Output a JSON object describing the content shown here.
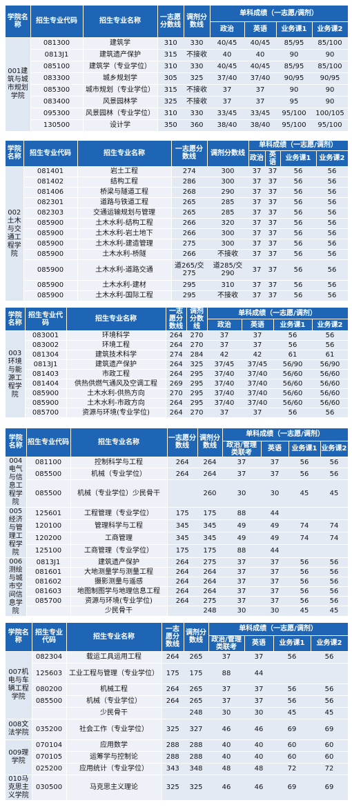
{
  "header_labels": {
    "college": "学院名称",
    "code": "招生专业代码",
    "name": "招生专业名称",
    "first": "一志愿分数线",
    "adjust": "调剂分数线",
    "single": "单科成绩（一志愿/调剂）",
    "politics": "政治",
    "politics_mgmt": "政治/管理类联考",
    "english": "英语",
    "course1": "业务课1",
    "course2": "业务课2"
  },
  "blocks": [
    {
      "college": "001建筑与城市规划学院",
      "rows": [
        [
          "081300",
          "建筑学",
          "310",
          "330",
          "40/45",
          "40/45",
          "85/95",
          "85/100"
        ],
        [
          "0813J1",
          "建筑遗产保护",
          "315",
          "不接收",
          "40",
          "40",
          "90",
          "90"
        ],
        [
          "085100",
          "建筑学（专业学位）",
          "310",
          "330",
          "40/45",
          "40/45",
          "85/95",
          "85/100"
        ],
        [
          "083300",
          "城乡规划学",
          "305",
          "325",
          "37/40",
          "37/40",
          "90/95",
          "90/95"
        ],
        [
          "085300",
          "城市规划（专业学位）",
          "315",
          "不接收",
          "37",
          "37",
          "90",
          "90"
        ],
        [
          "083400",
          "风景园林学",
          "325",
          "不接收",
          "37",
          "37",
          "95",
          "90"
        ],
        [
          "095300",
          "风景园林（专业学位）",
          "310",
          "330",
          "33/45",
          "33/45",
          "95/100",
          "100/105"
        ],
        [
          "130500",
          "设计学",
          "350",
          "360",
          "38/40",
          "38/40",
          "95/100",
          "95/100"
        ]
      ]
    },
    {
      "college": "002土木与交通工程学院",
      "rows": [
        [
          "081401",
          "岩土工程",
          "274",
          "300",
          "37",
          "37",
          "56",
          "56"
        ],
        [
          "081402",
          "结构工程",
          "286",
          "300",
          "37",
          "37",
          "56",
          "56"
        ],
        [
          "081406",
          "桥梁与隧道工程",
          "268",
          "290",
          "37",
          "37",
          "56",
          "56"
        ],
        [
          "082301",
          "道路与铁道工程",
          "265",
          "285",
          "37",
          "37",
          "56",
          "56"
        ],
        [
          "082303",
          "交通运输规划与管理",
          "265",
          "285",
          "37",
          "37",
          "56",
          "56"
        ],
        [
          "085900",
          "土木水利-结构工程",
          "266",
          "320",
          "37",
          "37",
          "56",
          "56"
        ],
        [
          "085900",
          "土木水利-岩土地下",
          "266",
          "300",
          "37",
          "37",
          "56",
          "56"
        ],
        [
          "085900",
          "土木水利-建造管理",
          "275",
          "300",
          "37",
          "37",
          "56",
          "56"
        ],
        [
          "085900",
          "土木水利-桥隧",
          "266",
          "不接收",
          "37",
          "37",
          "56",
          "56"
        ],
        [
          "085900",
          "土木水利-道路交通",
          "道265/交275",
          "道285/交290",
          "37",
          "37",
          "56",
          "56"
        ],
        [
          "085900",
          "土木水利-建材",
          "295",
          "310",
          "37",
          "37",
          "56",
          "56"
        ],
        [
          "085900",
          "土木水利-国际工程",
          "295",
          "不接收",
          "37",
          "37",
          "56",
          "56"
        ]
      ]
    },
    {
      "college": "003环境与能源工程学院",
      "rows": [
        [
          "083001",
          "环境科学",
          "264",
          "270",
          "37",
          "37",
          "56",
          "56"
        ],
        [
          "083002",
          "环境工程",
          "264",
          "270",
          "37",
          "37",
          "56",
          "56"
        ],
        [
          "081304",
          "建筑技术科学",
          "274",
          "284",
          "42",
          "42",
          "61",
          "61"
        ],
        [
          "0813J1",
          "建筑遗产保护",
          "264",
          "325",
          "37/45",
          "37/45",
          "56/90",
          "56/90"
        ],
        [
          "081403",
          "市政工程",
          "264",
          "295",
          "37/40",
          "37/40",
          "56/60",
          "56/60"
        ],
        [
          "081404",
          "供热供燃气通风及空调工程",
          "269",
          "295",
          "37/40",
          "37/40",
          "56/60",
          "56/60"
        ],
        [
          "085900",
          "土木水利-供热方向",
          "270",
          "295",
          "37/40",
          "37/40",
          "56/60",
          "56/60"
        ],
        [
          "085900",
          "土木水利-市政方向",
          "264",
          "295",
          "37/40",
          "37/40",
          "56/60",
          "56/60"
        ],
        [
          "085700",
          "资源与环境(专业学位)",
          "264",
          "270",
          "37",
          "37",
          "56",
          "56"
        ]
      ]
    },
    {
      "groups": [
        {
          "college": "004电气与信息工程学院",
          "rows": [
            [
              "081100",
              "控制科学与工程",
              "264",
              "264",
              "37",
              "37",
              "56",
              "56"
            ],
            [
              "085500",
              "机械（专业学位）",
              "264",
              "264",
              "37",
              "37",
              "56",
              "56"
            ],
            [
              "085500",
              "机械（专业学位）少民骨干",
              "",
              "260",
              "30",
              "30",
              "45",
              "45"
            ]
          ]
        },
        {
          "college": "005经济与管理工程学院",
          "rows": [
            [
              "125601",
              "工程管理（专业学位）",
              "175",
              "175",
              "88",
              "44",
              "",
              ""
            ],
            [
              "120100",
              "管理科学与工程",
              "345",
              "345",
              "49",
              "49",
              "74",
              "74"
            ],
            [
              "120200",
              "工商管理",
              "345",
              "345",
              "49",
              "49",
              "74",
              "74"
            ],
            [
              "125100",
              "工商管理（专业学位）",
              "175",
              "175",
              "88",
              "44",
              "",
              ""
            ]
          ]
        },
        {
          "college": "006测绘与城市空间信息学院",
          "rows": [
            [
              "0813J1",
              "建筑遗产保护",
              "264",
              "275",
              "37",
              "37",
              "56",
              "56"
            ],
            [
              "081601",
              "大地测量学与测量工程",
              "264",
              "264",
              "37",
              "37",
              "56",
              "56"
            ],
            [
              "081602",
              "摄影测量与遥感",
              "264",
              "264",
              "37",
              "37",
              "56",
              "56"
            ],
            [
              "081603",
              "地图制图学与地理信息工程",
              "264",
              "264",
              "37",
              "37",
              "56",
              "56"
            ],
            [
              "085700",
              "资源与环境(专业学位)",
              "264",
              "275",
              "37",
              "37",
              "56",
              "56"
            ],
            [
              "",
              "少民骨干",
              "",
              "248",
              "30",
              "30",
              "45",
              "45"
            ]
          ]
        }
      ]
    },
    {
      "groups": [
        {
          "college": "007机电与车辆工程学院",
          "rows": [
            [
              "082304",
              "载运工具运用工程",
              "264",
              "265",
              "37",
              "37",
              "56",
              "56"
            ],
            [
              "125603",
              "工业工程与管理（专业学位）",
              "175",
              "175",
              "88",
              "44",
              "",
              ""
            ],
            [
              "080200",
              "机械工程",
              "264",
              "265",
              "37",
              "37",
              "56",
              "56"
            ],
            [
              "085500",
              "机械（专业学位）",
              "264",
              "265",
              "37",
              "37",
              "56",
              "56"
            ],
            [
              "",
              "少民骨干",
              "",
              "248",
              "30",
              "30",
              "45",
              "45"
            ]
          ]
        },
        {
          "college": "008文法学院",
          "rows": [
            [
              "035200",
              "社会工作（专业学位）",
              "325",
              "327",
              "46",
              "46",
              "69",
              "69"
            ]
          ]
        },
        {
          "college": "009理学院",
          "rows": [
            [
              "070104",
              "应用数学",
              "288",
              "288",
              "40",
              "40",
              "60",
              "60"
            ],
            [
              "070105",
              "运筹学与控制论",
              "288",
              "288",
              "40",
              "40",
              "60",
              "60"
            ],
            [
              "025200",
              "应用统计（专业学位）",
              "343",
              "348",
              "48",
              "48",
              "72",
              "72"
            ]
          ]
        },
        {
          "college": "010马克思主义学院",
          "rows": [
            [
              "030500",
              "马克思主义理论",
              "325",
              "325",
              "46",
              "46",
              "69",
              "69"
            ]
          ]
        }
      ]
    }
  ]
}
